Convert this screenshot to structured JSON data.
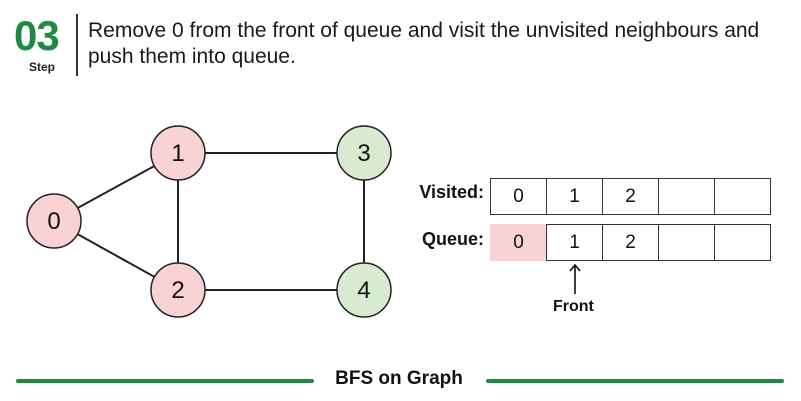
{
  "step": {
    "number": "03",
    "word": "Step",
    "description": "Remove 0 from the front of queue and visit the unvisited neighbours and push them into queue."
  },
  "graph": {
    "nodes": [
      {
        "id": "0",
        "label": "0",
        "state": "dequeued",
        "fill": "#f9d3d3"
      },
      {
        "id": "1",
        "label": "1",
        "state": "visited",
        "fill": "#f9d3d3"
      },
      {
        "id": "2",
        "label": "2",
        "state": "visited",
        "fill": "#f9d3d3"
      },
      {
        "id": "3",
        "label": "3",
        "state": "unvisited",
        "fill": "#d8ebd0"
      },
      {
        "id": "4",
        "label": "4",
        "state": "unvisited",
        "fill": "#d8ebd0"
      }
    ],
    "edges": [
      [
        "0",
        "1"
      ],
      [
        "0",
        "2"
      ],
      [
        "1",
        "2"
      ],
      [
        "1",
        "3"
      ],
      [
        "2",
        "4"
      ],
      [
        "3",
        "4"
      ]
    ]
  },
  "visited": {
    "label": "Visited:",
    "cells": [
      "0",
      "1",
      "2",
      "",
      ""
    ]
  },
  "queue": {
    "label": "Queue:",
    "cells": [
      "0",
      "1",
      "2",
      "",
      ""
    ],
    "front_label": "Front"
  },
  "footer": {
    "title": "BFS on Graph"
  },
  "colors": {
    "accent": "#1f8a45",
    "visited_fill": "#f9d3d3",
    "unvisited_fill": "#d8ebd0"
  }
}
